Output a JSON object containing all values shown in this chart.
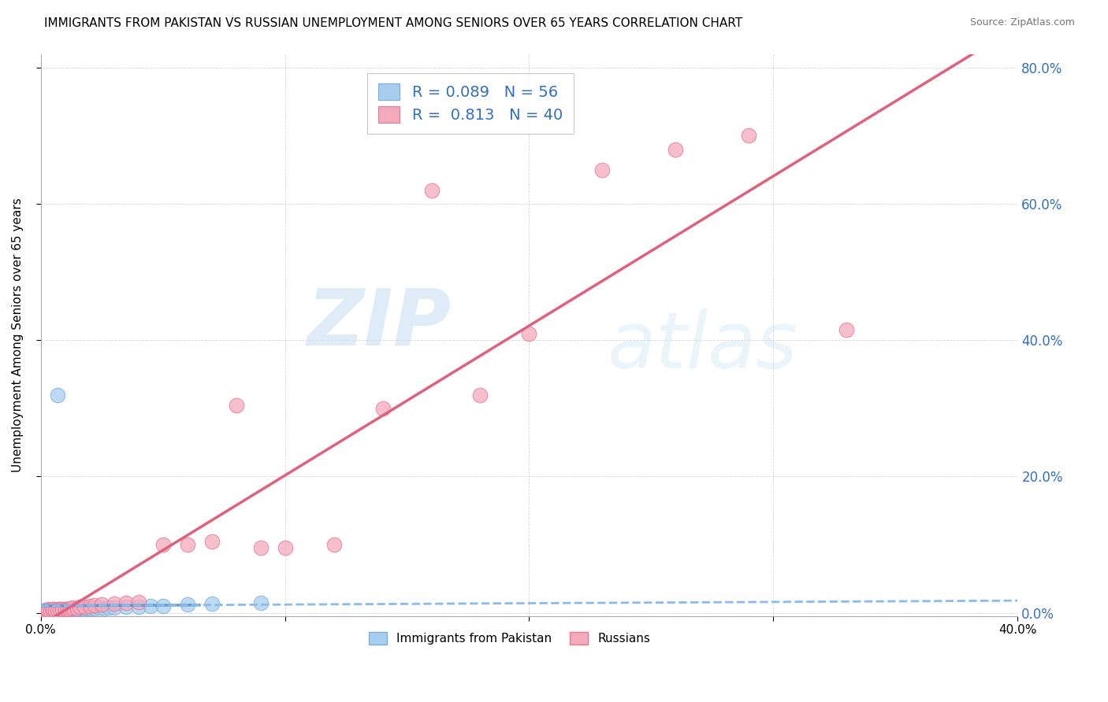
{
  "title": "IMMIGRANTS FROM PAKISTAN VS RUSSIAN UNEMPLOYMENT AMONG SENIORS OVER 65 YEARS CORRELATION CHART",
  "source": "Source: ZipAtlas.com",
  "ylabel": "Unemployment Among Seniors over 65 years",
  "xlim": [
    0.0,
    0.4
  ],
  "ylim": [
    -0.005,
    0.82
  ],
  "xticks": [
    0.0,
    0.1,
    0.2,
    0.3,
    0.4
  ],
  "yticks": [
    0.0,
    0.2,
    0.4,
    0.6,
    0.8
  ],
  "xtick_labels": [
    "0.0%",
    "",
    "",
    "",
    "40.0%"
  ],
  "ytick_labels_right": [
    "0.0%",
    "20.0%",
    "40.0%",
    "60.0%",
    "80.0%"
  ],
  "pakistan_color": "#A8CEEF",
  "pakistan_edge_color": "#7AADD8",
  "russia_color": "#F5AABB",
  "russia_edge_color": "#E07898",
  "pakistan_R": 0.089,
  "pakistan_N": 56,
  "russia_R": 0.813,
  "russia_N": 40,
  "pakistan_line_color": "#6699CC",
  "pakistan_dash_color": "#88BBEE",
  "russia_line_color": "#E06080",
  "blue_text_color": "#3070C0",
  "watermark_zip": "ZIP",
  "watermark_atlas": "atlas",
  "legend_label_1": "Immigrants from Pakistan",
  "legend_label_2": "Russians",
  "pakistan_scatter_x": [
    0.001,
    0.001,
    0.001,
    0.002,
    0.002,
    0.002,
    0.002,
    0.003,
    0.003,
    0.003,
    0.003,
    0.003,
    0.004,
    0.004,
    0.004,
    0.005,
    0.005,
    0.005,
    0.005,
    0.006,
    0.006,
    0.006,
    0.007,
    0.007,
    0.007,
    0.008,
    0.008,
    0.008,
    0.009,
    0.009,
    0.01,
    0.01,
    0.011,
    0.012,
    0.013,
    0.014,
    0.015,
    0.016,
    0.017,
    0.018,
    0.019,
    0.02,
    0.022,
    0.024,
    0.026,
    0.028,
    0.03,
    0.035,
    0.04,
    0.045,
    0.05,
    0.06,
    0.07,
    0.09,
    0.007,
    0.003
  ],
  "pakistan_scatter_y": [
    0.001,
    0.002,
    0.003,
    0.001,
    0.002,
    0.003,
    0.004,
    0.001,
    0.002,
    0.003,
    0.004,
    0.005,
    0.002,
    0.003,
    0.004,
    0.001,
    0.002,
    0.003,
    0.005,
    0.002,
    0.003,
    0.004,
    0.002,
    0.003,
    0.005,
    0.002,
    0.003,
    0.006,
    0.003,
    0.004,
    0.003,
    0.005,
    0.004,
    0.004,
    0.005,
    0.005,
    0.006,
    0.005,
    0.006,
    0.006,
    0.007,
    0.007,
    0.007,
    0.008,
    0.007,
    0.008,
    0.008,
    0.009,
    0.009,
    0.01,
    0.01,
    0.012,
    0.013,
    0.015,
    0.32,
    0.003
  ],
  "russia_scatter_x": [
    0.001,
    0.002,
    0.002,
    0.003,
    0.003,
    0.004,
    0.005,
    0.005,
    0.006,
    0.007,
    0.008,
    0.009,
    0.01,
    0.011,
    0.012,
    0.013,
    0.015,
    0.016,
    0.018,
    0.02,
    0.022,
    0.025,
    0.03,
    0.035,
    0.04,
    0.05,
    0.06,
    0.07,
    0.08,
    0.09,
    0.1,
    0.12,
    0.14,
    0.16,
    0.18,
    0.2,
    0.23,
    0.26,
    0.29,
    0.33
  ],
  "russia_scatter_y": [
    0.001,
    0.002,
    0.003,
    0.002,
    0.004,
    0.003,
    0.003,
    0.005,
    0.004,
    0.004,
    0.005,
    0.006,
    0.006,
    0.006,
    0.007,
    0.008,
    0.007,
    0.009,
    0.009,
    0.01,
    0.011,
    0.012,
    0.014,
    0.015,
    0.016,
    0.1,
    0.1,
    0.105,
    0.305,
    0.095,
    0.095,
    0.1,
    0.3,
    0.62,
    0.32,
    0.41,
    0.65,
    0.68,
    0.7,
    0.415
  ]
}
